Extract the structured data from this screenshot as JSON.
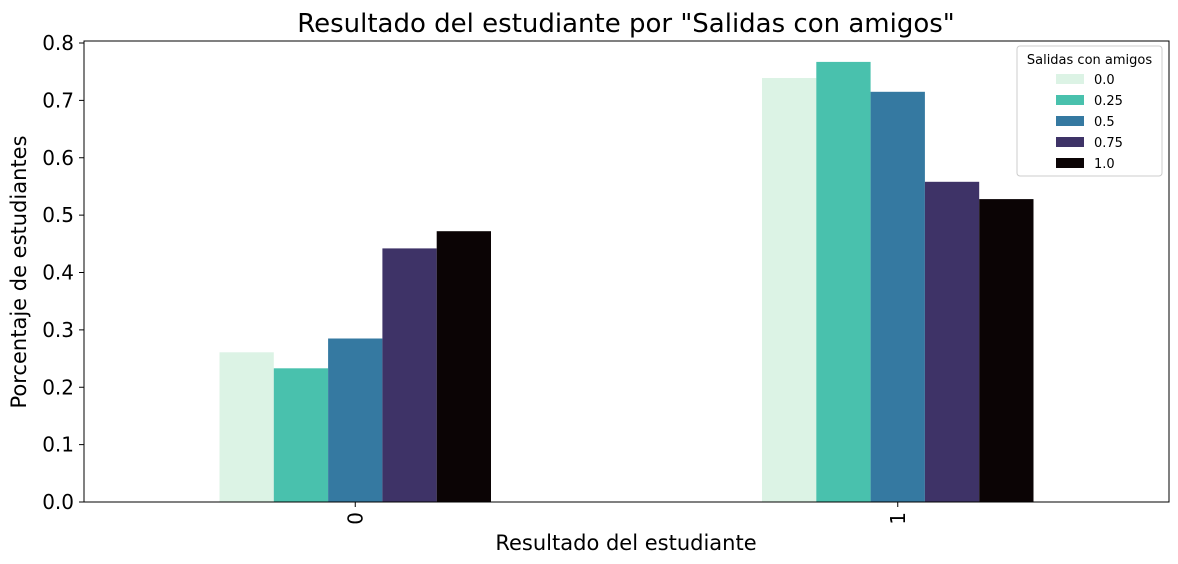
{
  "chart_data": {
    "type": "bar",
    "title": "Resultado del estudiante por \"Salidas con amigos\"",
    "xlabel": "Resultado del estudiante",
    "ylabel": "Porcentaje de estudiantes",
    "categories": [
      "0",
      "1"
    ],
    "ylim": [
      0,
      0.8
    ],
    "yticks": [
      "0.0",
      "0.1",
      "0.2",
      "0.3",
      "0.4",
      "0.5",
      "0.6",
      "0.7",
      "0.8"
    ],
    "ytick_values": [
      0,
      0.1,
      0.2,
      0.3,
      0.4,
      0.5,
      0.6,
      0.7,
      0.8
    ],
    "grid": false,
    "legend": {
      "title": "Salidas con amigos",
      "placement": "top-right"
    },
    "series": [
      {
        "name": "0.0",
        "color": "#dcf3e5",
        "values": [
          0.261,
          0.739
        ]
      },
      {
        "name": "0.25",
        "color": "#49c1ad",
        "values": [
          0.233,
          0.767
        ]
      },
      {
        "name": "0.5",
        "color": "#3579a1",
        "values": [
          0.285,
          0.715
        ]
      },
      {
        "name": "0.75",
        "color": "#3e3367",
        "values": [
          0.442,
          0.558
        ]
      },
      {
        "name": "1.0",
        "color": "#0b0405",
        "values": [
          0.472,
          0.528
        ]
      }
    ]
  }
}
